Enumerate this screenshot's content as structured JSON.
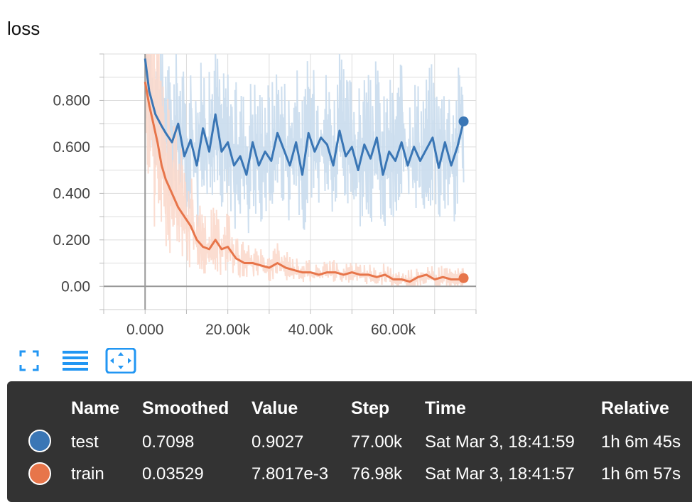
{
  "card": {
    "title": "loss"
  },
  "toolbar": {
    "fullscreen_icon": "fullscreen-icon",
    "list_icon": "list-lines-icon",
    "fit_icon": "fit-to-data-icon"
  },
  "chart_data": {
    "type": "line",
    "title": "loss",
    "xlabel": "",
    "ylabel": "",
    "xlim": [
      -10000,
      80000
    ],
    "ylim": [
      -0.1,
      1.0
    ],
    "x_ticks": [
      "0.000",
      "20.00k",
      "40.00k",
      "60.00k"
    ],
    "x_tick_values": [
      0,
      20000,
      40000,
      60000
    ],
    "y_ticks": [
      "0.00",
      "0.200",
      "0.400",
      "0.600",
      "0.800"
    ],
    "y_tick_values": [
      0,
      0.2,
      0.4,
      0.6,
      0.8
    ],
    "grid": true,
    "series": [
      {
        "name": "test",
        "color": "#3a76b5",
        "raw_color": "#c9dced",
        "x": [
          0,
          1000,
          2500,
          4000,
          5000,
          6500,
          8000,
          9500,
          11000,
          12500,
          14000,
          15500,
          17000,
          18500,
          20000,
          21500,
          23000,
          24500,
          26000,
          27500,
          29000,
          30500,
          32000,
          33500,
          35000,
          36500,
          38000,
          39500,
          41000,
          42500,
          44000,
          45500,
          47000,
          48500,
          50000,
          51500,
          53000,
          54500,
          56000,
          57500,
          59000,
          60500,
          62000,
          63500,
          65000,
          66500,
          68000,
          69500,
          71000,
          72500,
          74000,
          75500,
          77000
        ],
        "y": [
          0.98,
          0.84,
          0.74,
          0.69,
          0.66,
          0.62,
          0.7,
          0.56,
          0.63,
          0.52,
          0.68,
          0.58,
          0.74,
          0.58,
          0.62,
          0.52,
          0.56,
          0.48,
          0.62,
          0.52,
          0.58,
          0.54,
          0.66,
          0.59,
          0.52,
          0.62,
          0.48,
          0.66,
          0.58,
          0.64,
          0.61,
          0.52,
          0.67,
          0.56,
          0.6,
          0.5,
          0.61,
          0.55,
          0.64,
          0.48,
          0.58,
          0.54,
          0.62,
          0.52,
          0.6,
          0.54,
          0.59,
          0.64,
          0.51,
          0.62,
          0.52,
          0.6,
          0.7098
        ],
        "last_smoothed": "0.7098",
        "last_value": "0.9027",
        "last_step": "77.00k",
        "time": "Sat Mar 3, 18:41:59",
        "relative": "1h 6m 45s"
      },
      {
        "name": "train",
        "color": "#e7754a",
        "raw_color": "#fbd9cc",
        "x": [
          0,
          1000,
          2000,
          3000,
          4000,
          5000,
          6500,
          8000,
          9500,
          11000,
          12500,
          14000,
          15500,
          17000,
          18500,
          20000,
          22000,
          24000,
          26000,
          28000,
          30000,
          32000,
          34000,
          36000,
          38000,
          40000,
          42000,
          44000,
          46000,
          48000,
          50000,
          52000,
          54000,
          56000,
          58000,
          60000,
          62000,
          64000,
          66000,
          68000,
          70000,
          72000,
          74000,
          76000,
          77000
        ],
        "y": [
          0.88,
          0.78,
          0.7,
          0.62,
          0.52,
          0.46,
          0.4,
          0.34,
          0.3,
          0.26,
          0.2,
          0.17,
          0.16,
          0.2,
          0.16,
          0.17,
          0.12,
          0.1,
          0.1,
          0.09,
          0.08,
          0.1,
          0.08,
          0.07,
          0.06,
          0.06,
          0.05,
          0.06,
          0.06,
          0.05,
          0.06,
          0.05,
          0.05,
          0.04,
          0.05,
          0.03,
          0.03,
          0.02,
          0.04,
          0.05,
          0.03,
          0.04,
          0.03,
          0.03,
          0.0353
        ],
        "last_smoothed": "0.03529",
        "last_value": "7.8017e-3",
        "last_step": "76.98k",
        "time": "Sat Mar 3, 18:41:57",
        "relative": "1h 6m 57s"
      }
    ]
  },
  "tooltip": {
    "headers": {
      "name": "Name",
      "smoothed": "Smoothed",
      "value": "Value",
      "step": "Step",
      "time": "Time",
      "relative": "Relative"
    },
    "rows": [
      {
        "name": "test",
        "smoothed": "0.7098",
        "value": "0.9027",
        "step": "77.00k",
        "time": "Sat Mar 3, 18:41:59",
        "relative": "1h 6m 45s",
        "color": "#3a76b5"
      },
      {
        "name": "train",
        "smoothed": "0.03529",
        "value": "7.8017e-3",
        "step": "76.98k",
        "time": "Sat Mar 3, 18:41:57",
        "relative": "1h 6m 57s",
        "color": "#e7754a"
      }
    ]
  }
}
